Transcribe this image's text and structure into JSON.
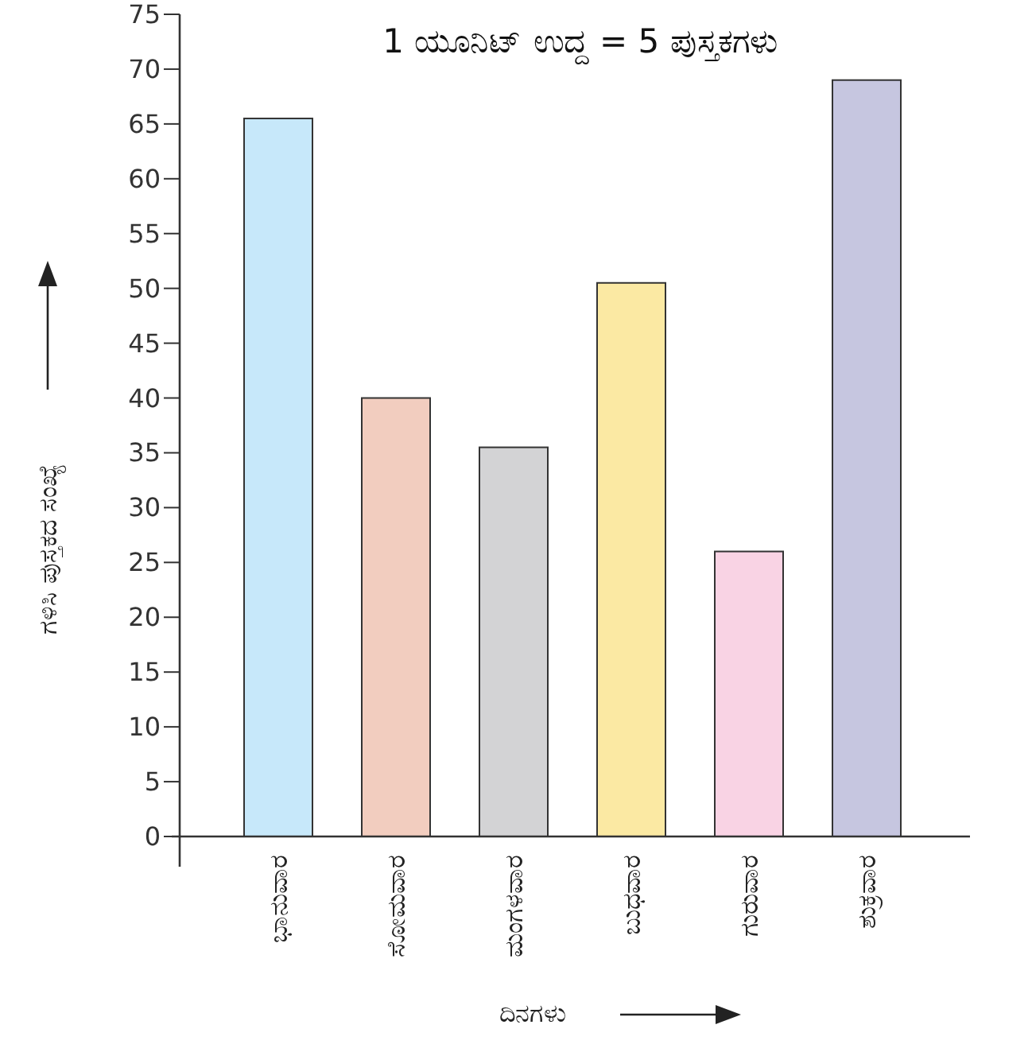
{
  "chart_data": {
    "type": "bar",
    "title": "1 ಯೂನಿಟ್ ಉದ್ದ = 5 ಪುಸ್ತಕಗಳು",
    "xlabel": "ದಿನಗಳು",
    "ylabel": "ಗಳಿಸಿ ಪುಸ್ತಕದ ಸಂಖ್ಯೆ",
    "categories": [
      "ಭಾನುವಾರ",
      "ಸೋಮವಾರ",
      "ಮಂಗಳವಾರ",
      "ಬುಧವಾರ",
      "ಗುರುವಾರ",
      "ಶುಕ್ರವಾರ"
    ],
    "values": [
      65.5,
      40,
      35.5,
      50.5,
      26,
      69
    ],
    "colors": [
      "#c7e8fa",
      "#f2cdbf",
      "#d3d3d5",
      "#fbe9a3",
      "#f9d3e4",
      "#c6c6e0"
    ],
    "ylim": [
      0,
      75
    ],
    "yticks": [
      0,
      5,
      10,
      15,
      20,
      25,
      30,
      35,
      40,
      45,
      50,
      55,
      60,
      65,
      70,
      75
    ]
  }
}
